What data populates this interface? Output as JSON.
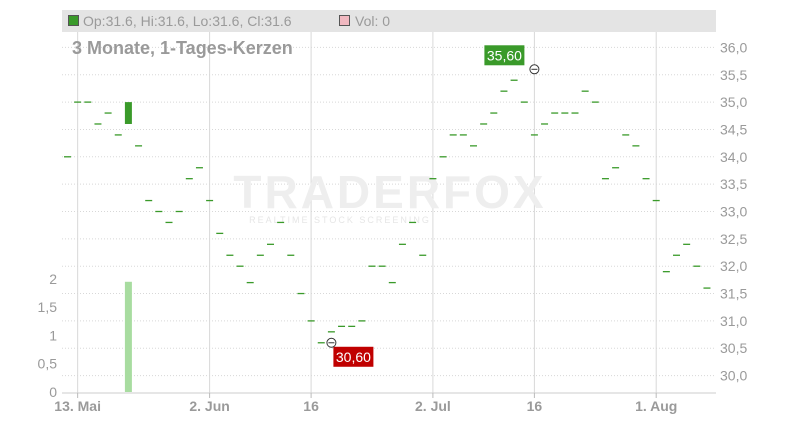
{
  "header": {
    "ohlc_label": "Op:31.6, Hi:31.6, Lo:31.6, Cl:31.6",
    "vol_label": "Vol: 0",
    "subtitle": "3 Monate, 1-Tages-Kerzen"
  },
  "watermark": {
    "brand": "TRADERFOX",
    "tagline": "REALTIME STOCK SCREENING"
  },
  "colors": {
    "up": "#3a9a2a",
    "down": "#c00000",
    "volume": "#a8dca0",
    "grid": "#d8d8d8",
    "axis_text": "#9a9a9a",
    "ohlc_swatch": "#3a9a2a",
    "vol_swatch": "#f0b8c0"
  },
  "chart_data": {
    "type": "candlestick",
    "price_axis": {
      "min": 29.7,
      "max": 36.3,
      "ticks": [
        "36,0",
        "35,5",
        "35,0",
        "34,5",
        "34,0",
        "33,5",
        "33,0",
        "32,5",
        "32,0",
        "31,5",
        "31,0",
        "30,5",
        "30,0"
      ],
      "values": [
        36,
        35.5,
        35,
        34.5,
        34,
        33.5,
        33,
        32.5,
        32,
        31.5,
        31,
        30.5,
        30
      ]
    },
    "volume_axis": {
      "min": 0,
      "max": 2.3,
      "ticks": [
        "2",
        "1,5",
        "1",
        "0,5",
        "0"
      ],
      "values": [
        2,
        1.5,
        1,
        0.5,
        0
      ]
    },
    "x_ticks": [
      {
        "label": "13. Mai",
        "index": 1
      },
      {
        "label": "2. Jun",
        "index": 14
      },
      {
        "label": "16",
        "index": 24
      },
      {
        "label": "2. Jul",
        "index": 36
      },
      {
        "label": "16",
        "index": 46
      },
      {
        "label": "1. Aug",
        "index": 58
      }
    ],
    "candles": [
      {
        "o": 34,
        "c": 34
      },
      {
        "o": 35,
        "c": 35
      },
      {
        "o": 35,
        "c": 35
      },
      {
        "o": 34.6,
        "c": 34.6
      },
      {
        "o": 34.8,
        "c": 34.8
      },
      {
        "o": 34.4,
        "c": 34.4
      },
      {
        "o": 34.6,
        "c": 35.0
      },
      {
        "o": 34.2,
        "c": 34.2
      },
      {
        "o": 33.2,
        "c": 33.2
      },
      {
        "o": 33,
        "c": 33
      },
      {
        "o": 32.8,
        "c": 32.8
      },
      {
        "o": 33,
        "c": 33
      },
      {
        "o": 33.6,
        "c": 33.6
      },
      {
        "o": 33.8,
        "c": 33.8
      },
      {
        "o": 33.2,
        "c": 33.2
      },
      {
        "o": 32.6,
        "c": 32.6
      },
      {
        "o": 32.2,
        "c": 32.2
      },
      {
        "o": 32,
        "c": 32
      },
      {
        "o": 31.7,
        "c": 31.7
      },
      {
        "o": 32.2,
        "c": 32.2
      },
      {
        "o": 32.4,
        "c": 32.4
      },
      {
        "o": 32.8,
        "c": 32.8
      },
      {
        "o": 32.2,
        "c": 32.2
      },
      {
        "o": 31.5,
        "c": 31.5
      },
      {
        "o": 31,
        "c": 31
      },
      {
        "o": 30.6,
        "c": 30.6
      },
      {
        "o": 30.8,
        "c": 30.8
      },
      {
        "o": 30.9,
        "c": 30.9
      },
      {
        "o": 30.9,
        "c": 30.9
      },
      {
        "o": 31,
        "c": 31
      },
      {
        "o": 32,
        "c": 32
      },
      {
        "o": 32,
        "c": 32
      },
      {
        "o": 31.7,
        "c": 31.7
      },
      {
        "o": 32.4,
        "c": 32.4
      },
      {
        "o": 32.8,
        "c": 32.8
      },
      {
        "o": 32.2,
        "c": 32.2
      },
      {
        "o": 33.6,
        "c": 33.6
      },
      {
        "o": 34,
        "c": 34
      },
      {
        "o": 34.4,
        "c": 34.4
      },
      {
        "o": 34.4,
        "c": 34.4
      },
      {
        "o": 34.2,
        "c": 34.2
      },
      {
        "o": 34.6,
        "c": 34.6
      },
      {
        "o": 34.8,
        "c": 34.8
      },
      {
        "o": 35.2,
        "c": 35.2
      },
      {
        "o": 35.4,
        "c": 35.4
      },
      {
        "o": 35,
        "c": 35
      },
      {
        "o": 34.4,
        "c": 34.4
      },
      {
        "o": 34.6,
        "c": 34.6
      },
      {
        "o": 34.8,
        "c": 34.8
      },
      {
        "o": 34.8,
        "c": 34.8
      },
      {
        "o": 34.8,
        "c": 34.8
      },
      {
        "o": 35.2,
        "c": 35.2
      },
      {
        "o": 35,
        "c": 35
      },
      {
        "o": 33.6,
        "c": 33.6
      },
      {
        "o": 33.8,
        "c": 33.8
      },
      {
        "o": 34.4,
        "c": 34.4
      },
      {
        "o": 34.2,
        "c": 34.2
      },
      {
        "o": 33.6,
        "c": 33.6
      },
      {
        "o": 33.2,
        "c": 33.2
      },
      {
        "o": 31.9,
        "c": 31.9
      },
      {
        "o": 32.2,
        "c": 32.2
      },
      {
        "o": 32.4,
        "c": 32.4
      },
      {
        "o": 32,
        "c": 32
      },
      {
        "o": 31.6,
        "c": 31.6
      }
    ],
    "volumes": [
      {
        "index": 6,
        "value": 1.95
      }
    ],
    "annotations": [
      {
        "label": "35,60",
        "index": 46,
        "value": 35.6,
        "kind": "high"
      },
      {
        "label": "30,60",
        "index": 26,
        "value": 30.6,
        "kind": "low"
      }
    ]
  }
}
